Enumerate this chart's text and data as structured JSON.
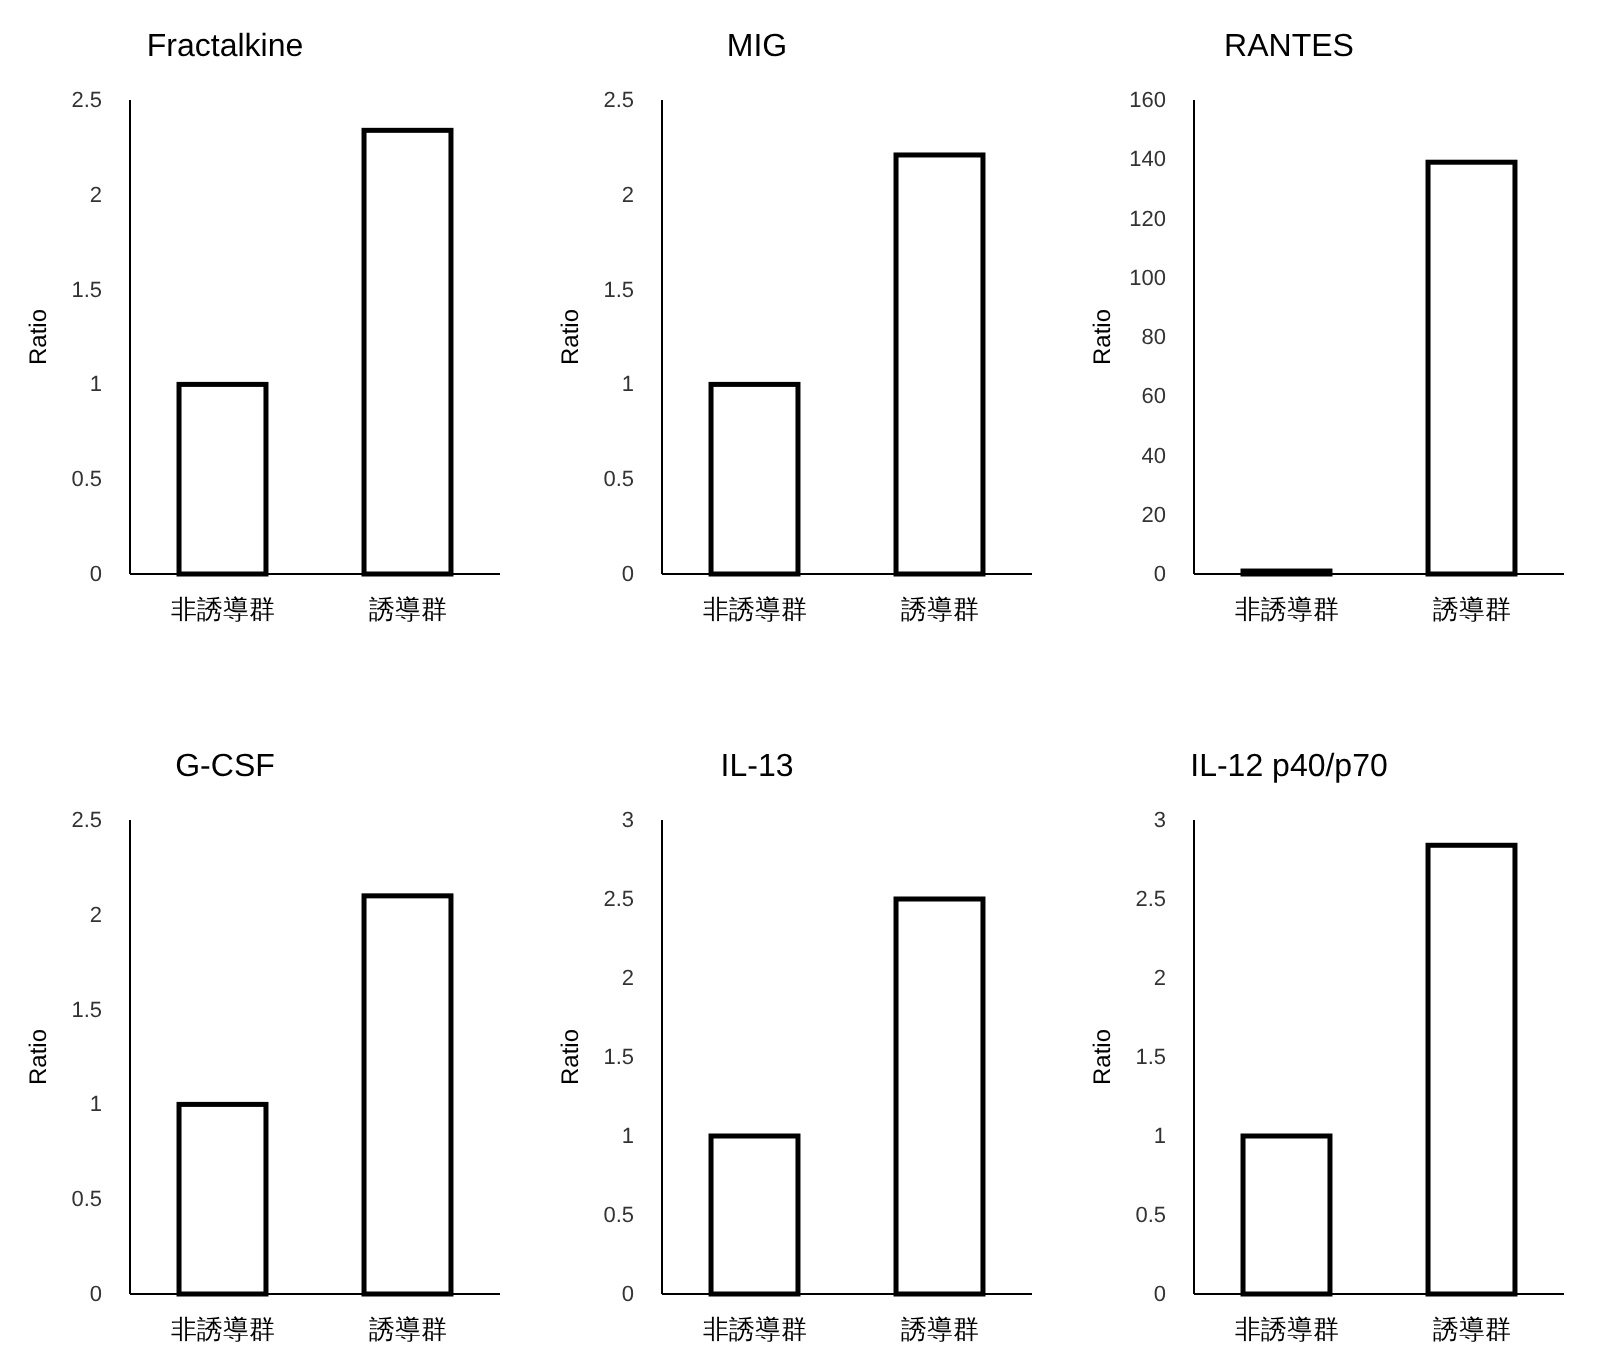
{
  "chart_data": [
    {
      "type": "bar",
      "title": "Fractalkine",
      "ylabel": "Ratio",
      "categories": [
        "非誘導群",
        "誘導群"
      ],
      "values": [
        1,
        2.34
      ],
      "color": "#ffffff",
      "ylim": [
        0,
        2.5
      ],
      "yticks": [
        0,
        0.5,
        1,
        1.5,
        2,
        2.5
      ],
      "grid": false
    },
    {
      "type": "bar",
      "title": "MIG",
      "ylabel": "Ratio",
      "categories": [
        "非誘導群",
        "誘導群"
      ],
      "values": [
        1,
        2.21
      ],
      "color": "#ffffff",
      "ylim": [
        0,
        2.5
      ],
      "yticks": [
        0,
        0.5,
        1,
        1.5,
        2,
        2.5
      ],
      "grid": false
    },
    {
      "type": "bar",
      "title": "RANTES",
      "ylabel": "Ratio",
      "categories": [
        "非誘導群",
        "誘導群"
      ],
      "values": [
        1,
        139
      ],
      "color": "#ffffff",
      "ylim": [
        0,
        160
      ],
      "yticks": [
        0,
        20,
        40,
        60,
        80,
        100,
        120,
        140,
        160
      ],
      "grid": false
    },
    {
      "type": "bar",
      "title": "G-CSF",
      "ylabel": "Ratio",
      "categories": [
        "非誘導群",
        "誘導群"
      ],
      "values": [
        1,
        2.1
      ],
      "color": "#ffffff",
      "ylim": [
        0,
        2.5
      ],
      "yticks": [
        0,
        0.5,
        1,
        1.5,
        2,
        2.5
      ],
      "grid": false
    },
    {
      "type": "bar",
      "title": "IL-13",
      "ylabel": "Ratio",
      "categories": [
        "非誘導群",
        "誘導群"
      ],
      "values": [
        1,
        2.5
      ],
      "color": "#ffffff",
      "ylim": [
        0,
        3
      ],
      "yticks": [
        0,
        0.5,
        1,
        1.5,
        2,
        2.5,
        3
      ],
      "grid": false
    },
    {
      "type": "bar",
      "title": "IL-12 p40/p70",
      "ylabel": "Ratio",
      "categories": [
        "非誘導群",
        "誘導群"
      ],
      "values": [
        1,
        2.84
      ],
      "color": "#ffffff",
      "ylim": [
        0,
        3
      ],
      "yticks": [
        0,
        0.5,
        1,
        1.5,
        2,
        2.5,
        3
      ],
      "grid": false
    }
  ]
}
